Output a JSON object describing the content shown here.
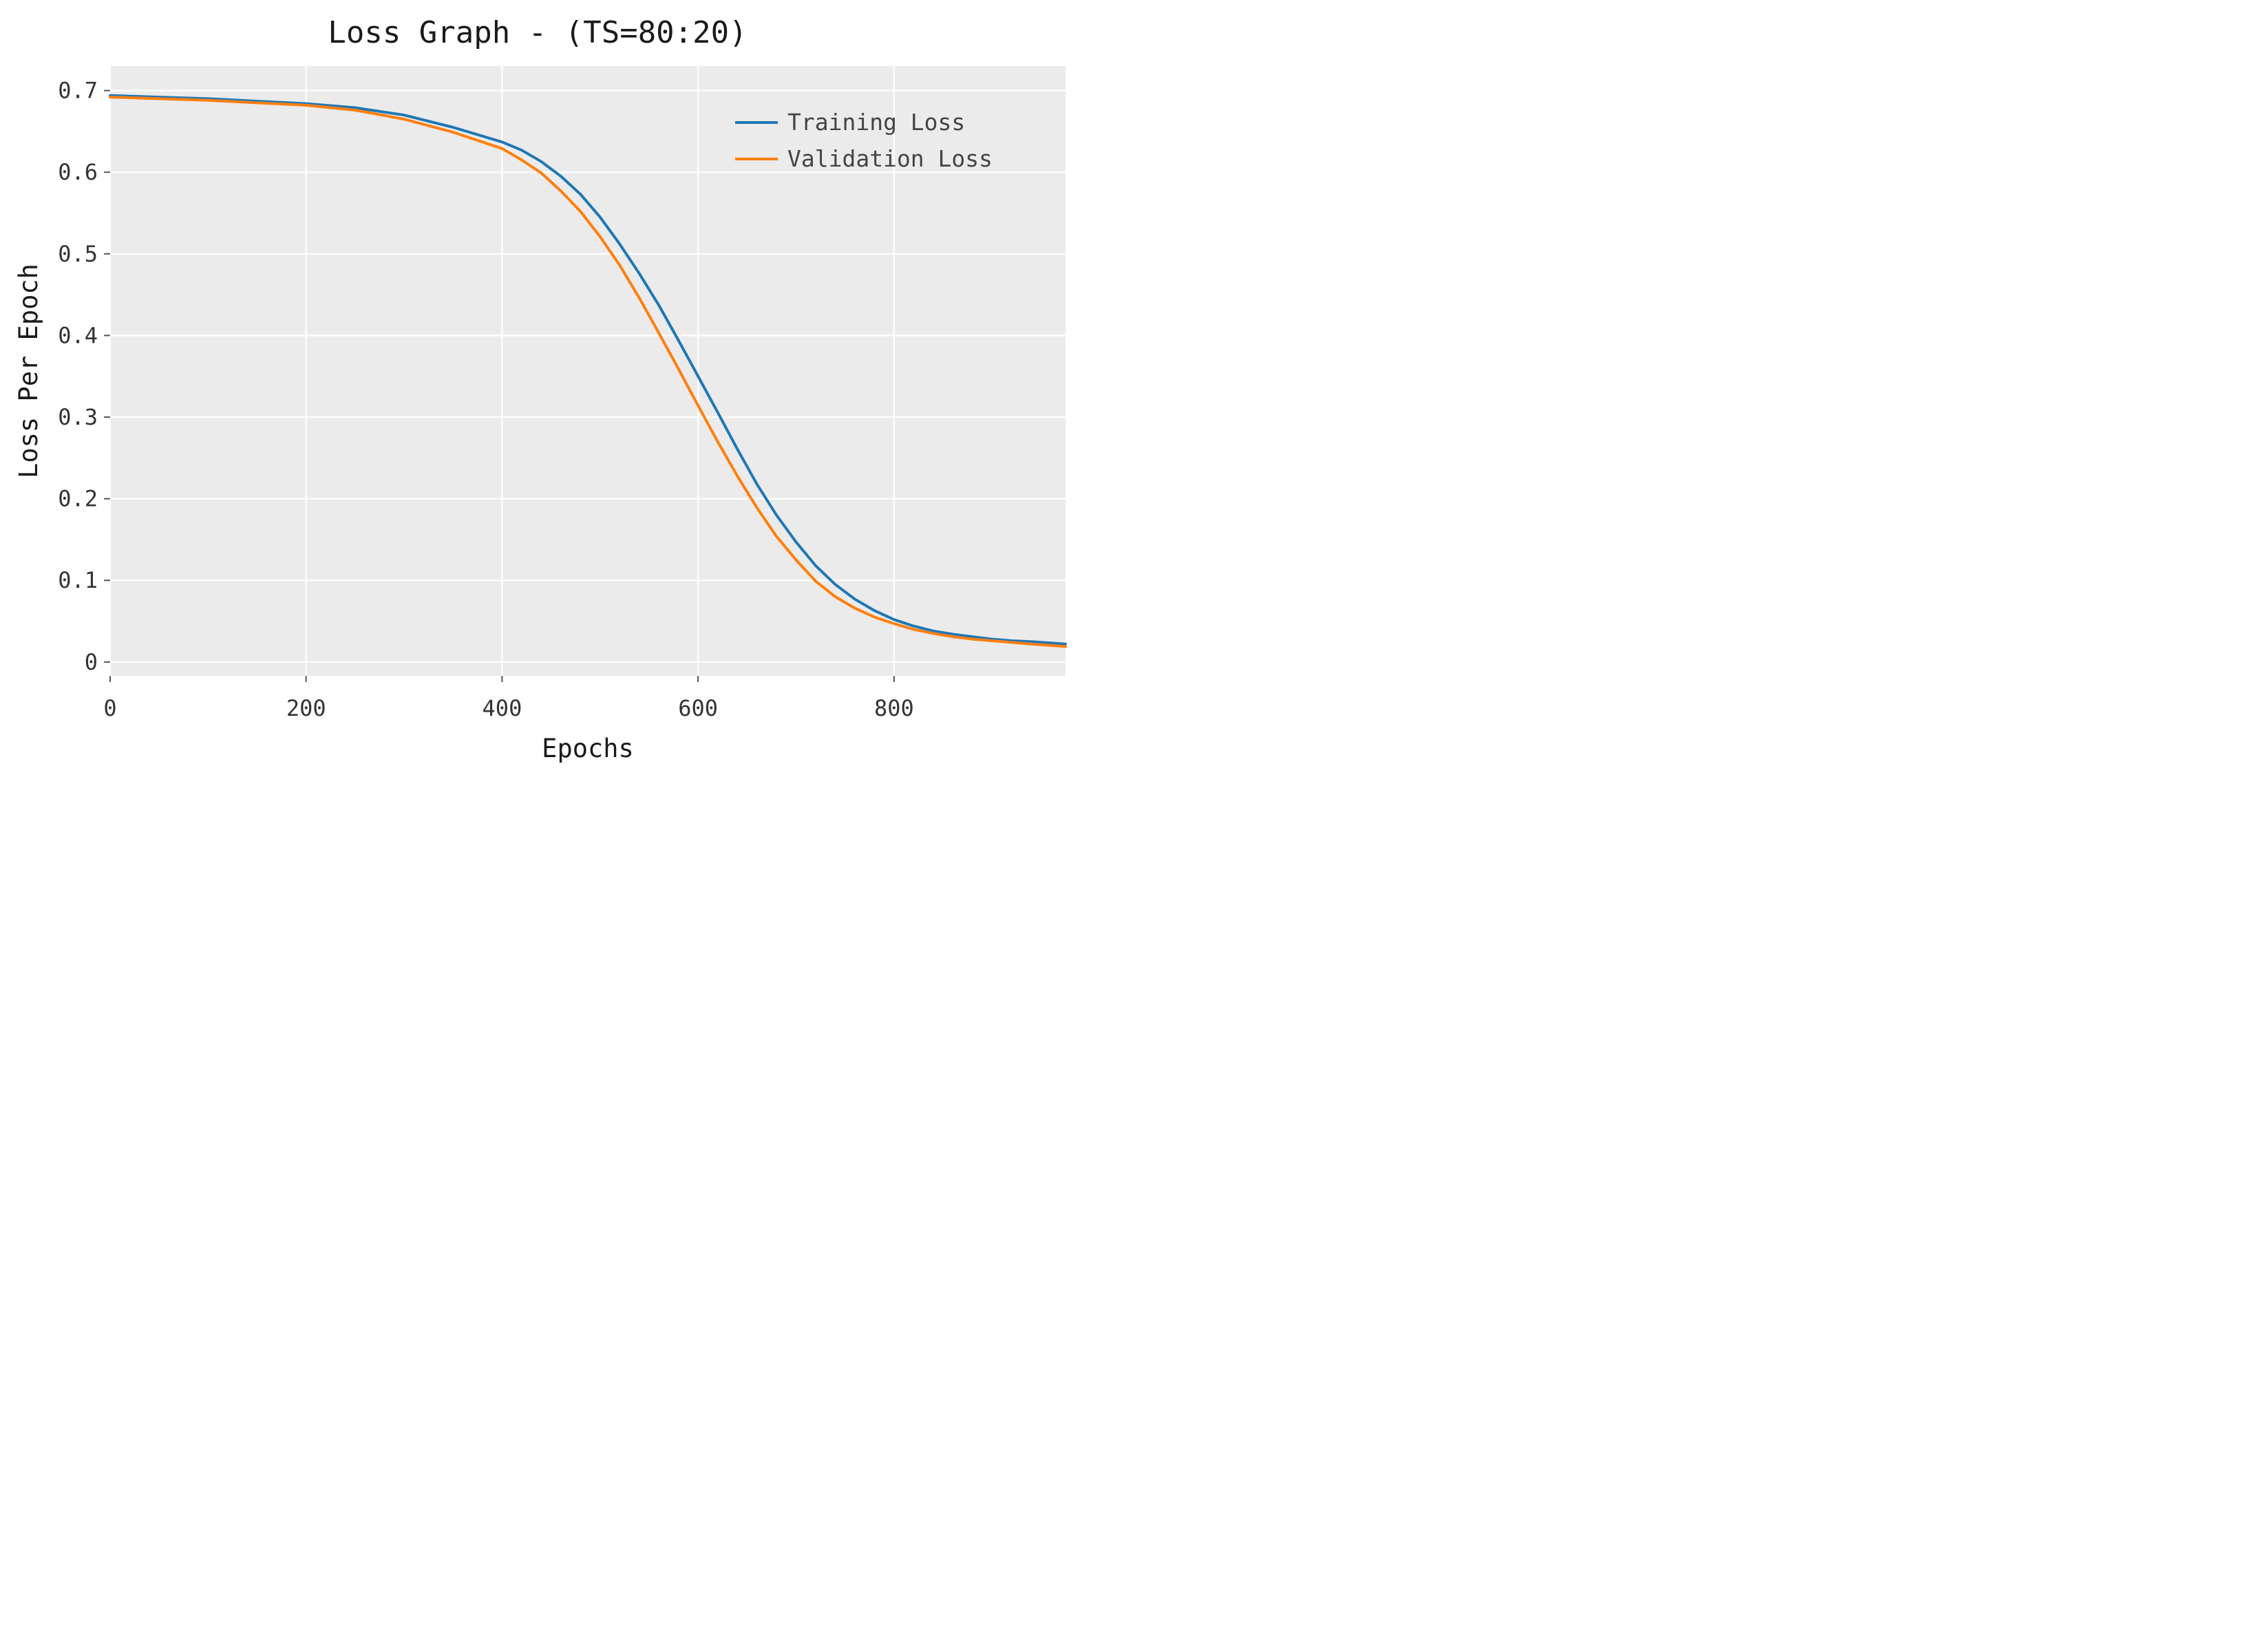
{
  "chart_data": {
    "type": "line",
    "title": "Loss Graph - (TS=80:20)",
    "xlabel": "Epochs",
    "ylabel": "Loss Per Epoch",
    "xlim": [
      0,
      975
    ],
    "ylim": [
      -0.017,
      0.73
    ],
    "x_ticks": [
      0,
      200,
      400,
      600,
      800
    ],
    "x_tick_labels": [
      "0",
      "200",
      "400",
      "600",
      "800"
    ],
    "y_ticks": [
      0,
      0.1,
      0.2,
      0.3,
      0.4,
      0.5,
      0.6,
      0.7
    ],
    "y_tick_labels": [
      "0",
      "0.1",
      "0.2",
      "0.3",
      "0.4",
      "0.5",
      "0.6",
      "0.7"
    ],
    "grid": true,
    "legend_position": "top-right",
    "series": [
      {
        "name": "Training Loss",
        "color": "#1f77b4",
        "x": [
          0,
          50,
          100,
          150,
          200,
          250,
          300,
          350,
          400,
          420,
          440,
          460,
          480,
          500,
          520,
          540,
          560,
          580,
          600,
          620,
          640,
          660,
          680,
          700,
          720,
          740,
          760,
          780,
          800,
          820,
          840,
          860,
          880,
          900,
          920,
          940,
          975
        ],
        "values": [
          0.694,
          0.692,
          0.69,
          0.687,
          0.684,
          0.679,
          0.67,
          0.655,
          0.637,
          0.627,
          0.613,
          0.595,
          0.573,
          0.545,
          0.512,
          0.476,
          0.437,
          0.394,
          0.35,
          0.306,
          0.261,
          0.218,
          0.18,
          0.147,
          0.118,
          0.095,
          0.077,
          0.063,
          0.052,
          0.044,
          0.038,
          0.034,
          0.031,
          0.028,
          0.026,
          0.025,
          0.022
        ]
      },
      {
        "name": "Validation Loss",
        "color": "#ff7f0e",
        "x": [
          0,
          50,
          100,
          150,
          200,
          250,
          300,
          350,
          400,
          420,
          440,
          460,
          480,
          500,
          520,
          540,
          560,
          580,
          600,
          620,
          640,
          660,
          680,
          700,
          720,
          740,
          760,
          780,
          800,
          820,
          840,
          860,
          880,
          900,
          920,
          940,
          975
        ],
        "values": [
          0.692,
          0.69,
          0.688,
          0.685,
          0.682,
          0.676,
          0.665,
          0.649,
          0.629,
          0.615,
          0.599,
          0.577,
          0.552,
          0.521,
          0.486,
          0.446,
          0.403,
          0.359,
          0.314,
          0.27,
          0.228,
          0.189,
          0.154,
          0.125,
          0.099,
          0.08,
          0.066,
          0.055,
          0.047,
          0.04,
          0.035,
          0.031,
          0.028,
          0.026,
          0.024,
          0.022,
          0.019
        ]
      }
    ]
  }
}
